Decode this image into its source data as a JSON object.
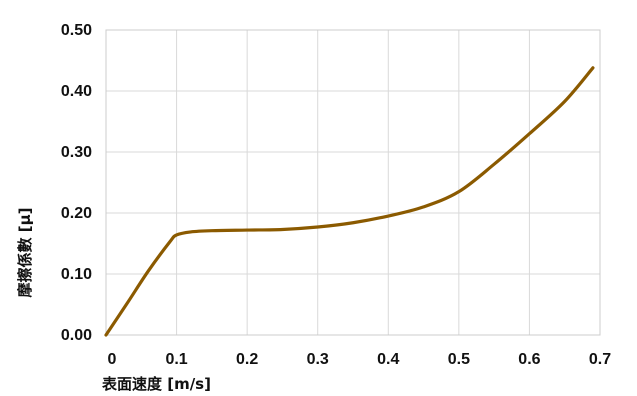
{
  "chart_data": {
    "type": "line",
    "xlabel": "表面速度 [m/s]",
    "ylabel": "摩擦係數 [μ]",
    "xlim": [
      0,
      0.7
    ],
    "ylim": [
      0,
      0.5
    ],
    "x_ticks": [
      "0",
      "0.1",
      "0.2",
      "0.3",
      "0.4",
      "0.5",
      "0.6",
      "0.7"
    ],
    "y_ticks": [
      "0.00",
      "0.10",
      "0.20",
      "0.30",
      "0.40",
      "0.50"
    ],
    "grid": true,
    "legend": "none",
    "series": [
      {
        "color": "#8b5a00",
        "x": [
          0,
          0.03,
          0.06,
          0.09,
          0.1,
          0.12,
          0.15,
          0.2,
          0.25,
          0.3,
          0.35,
          0.4,
          0.45,
          0.5,
          0.55,
          0.6,
          0.65,
          0.69
        ],
        "y": [
          0.0,
          0.052,
          0.105,
          0.152,
          0.164,
          0.169,
          0.171,
          0.172,
          0.173,
          0.177,
          0.184,
          0.195,
          0.21,
          0.235,
          0.28,
          0.33,
          0.383,
          0.438
        ]
      }
    ]
  }
}
